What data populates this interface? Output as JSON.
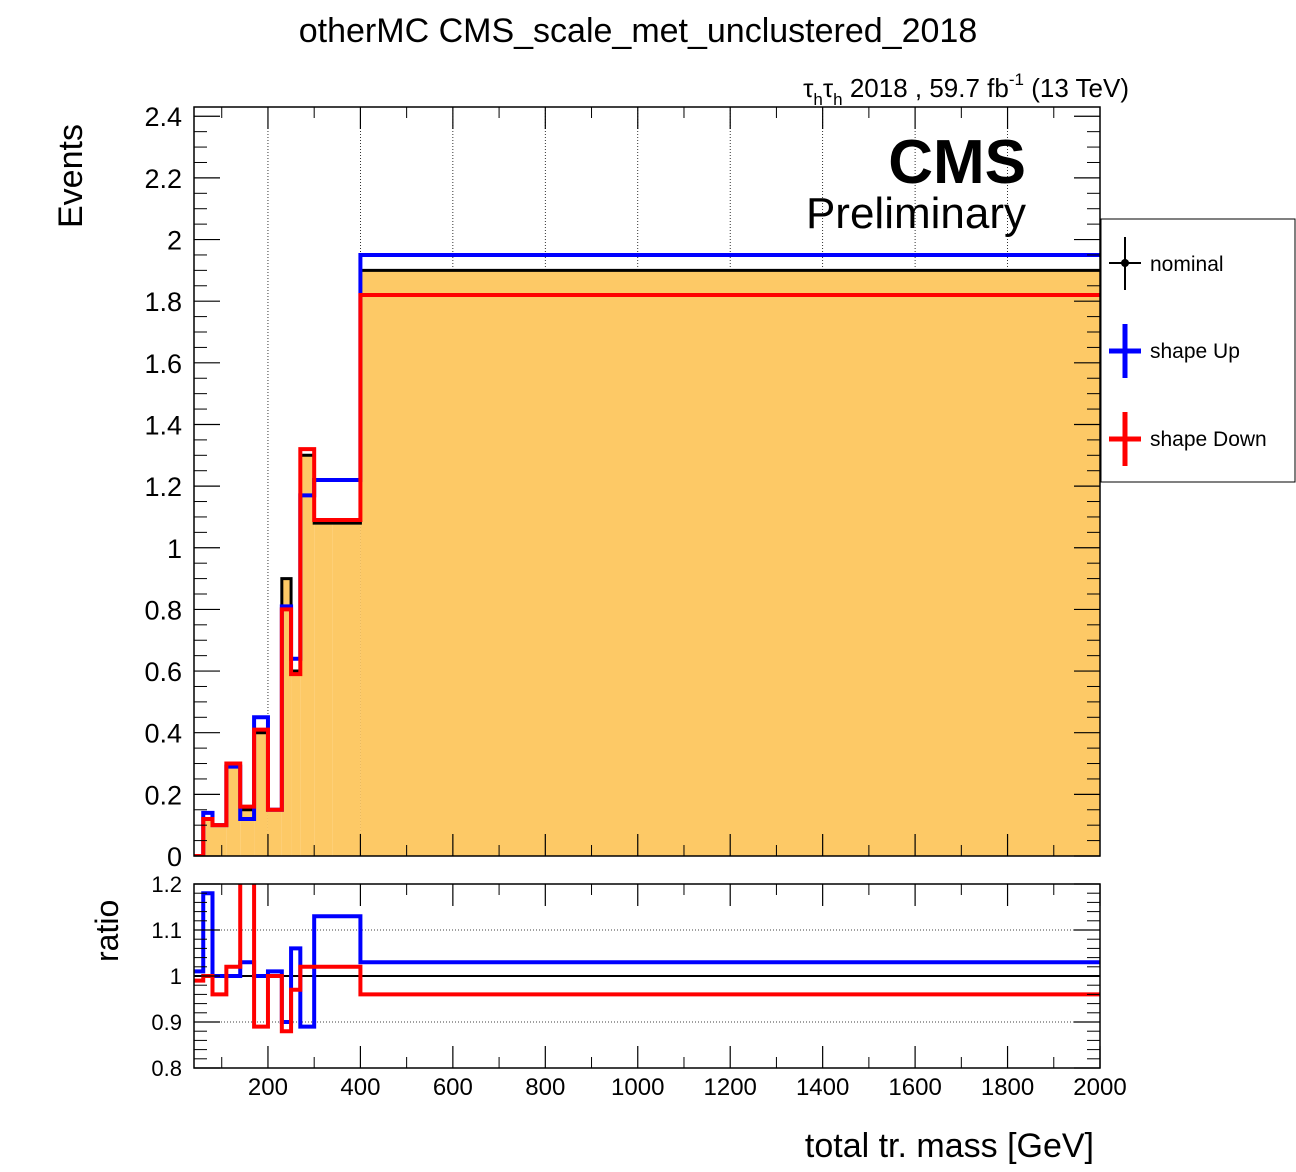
{
  "chart_data": [
    {
      "type": "line",
      "title": "otherMC CMS_scale_met_unclustered_2018",
      "subtitle": {
        "tau": "τ",
        "sub": "h",
        "main": " 2018 , 59.7 fb",
        "sup": "-1",
        "tail": " (13 TeV)"
      },
      "cms_label": "CMS",
      "preliminary_label": "Preliminary",
      "ylabel": "Events",
      "xlim": [
        40,
        2000
      ],
      "ylim": [
        0,
        2.43
      ],
      "yticks": [
        0,
        0.2,
        0.4,
        0.6,
        0.8,
        1,
        1.2,
        1.4,
        1.6,
        1.8,
        2,
        2.2,
        2.4
      ],
      "ytick_labels": [
        "0",
        "0.2",
        "0.4",
        "0.6",
        "0.8",
        "1",
        "1.2",
        "1.4",
        "1.6",
        "1.8",
        "2",
        "2.2",
        "2.4"
      ],
      "xgrid": [
        200,
        400,
        600,
        800,
        1000,
        1200,
        1400,
        1600,
        1800
      ],
      "bin_edges": [
        40,
        60,
        80,
        110,
        140,
        170,
        200,
        230,
        250,
        270,
        300,
        340,
        400,
        2000
      ],
      "fill_color": "#fdc966",
      "legend": {
        "placement": "right",
        "entries": [
          "nominal",
          "shape Up",
          "shape Down"
        ]
      },
      "series": [
        {
          "name": "nominal",
          "color": "#000000",
          "values": [
            0,
            0.12,
            0.1,
            0.29,
            0.15,
            0.4,
            0.15,
            0.9,
            0.6,
            1.3,
            1.08,
            1.08,
            1.9
          ]
        },
        {
          "name": "shape Up",
          "color": "#0000ff",
          "values": [
            0,
            0.14,
            0.1,
            0.29,
            0.12,
            0.45,
            0.15,
            0.81,
            0.64,
            1.17,
            1.22,
            1.22,
            1.95
          ]
        },
        {
          "name": "shape Down",
          "color": "#ff0000",
          "values": [
            0,
            0.12,
            0.1,
            0.3,
            0.16,
            0.41,
            0.15,
            0.8,
            0.59,
            1.32,
            1.09,
            1.09,
            1.82
          ]
        }
      ]
    },
    {
      "type": "line",
      "ylabel": "ratio",
      "xlabel": "total tr. mass [GeV]",
      "xlim": [
        40,
        2000
      ],
      "ylim": [
        0.8,
        1.2
      ],
      "yticks": [
        0.8,
        0.9,
        1,
        1.1,
        1.2
      ],
      "ytick_labels": [
        "0.8",
        "0.9",
        "1",
        "1.1",
        "1.2"
      ],
      "xticks": [
        200,
        400,
        600,
        800,
        1000,
        1200,
        1400,
        1600,
        1800,
        2000
      ],
      "xtick_labels": [
        "200",
        "400",
        "600",
        "800",
        "1000",
        "1200",
        "1400",
        "1600",
        "1800",
        "2000"
      ],
      "bin_edges": [
        40,
        60,
        80,
        110,
        140,
        170,
        200,
        230,
        250,
        270,
        300,
        340,
        400,
        2000
      ],
      "reference_line": 1,
      "series": [
        {
          "name": "shape Up",
          "color": "#0000ff",
          "values": [
            1.01,
            1.18,
            1.0,
            1.0,
            1.03,
            1.0,
            1.01,
            0.9,
            1.06,
            0.89,
            1.13,
            1.13,
            1.03
          ]
        },
        {
          "name": "shape Down",
          "color": "#ff0000",
          "values": [
            0.99,
            1.0,
            0.96,
            1.02,
            1.4,
            0.89,
            1.0,
            0.88,
            0.97,
            1.02,
            1.02,
            1.02,
            0.96
          ]
        }
      ]
    }
  ]
}
